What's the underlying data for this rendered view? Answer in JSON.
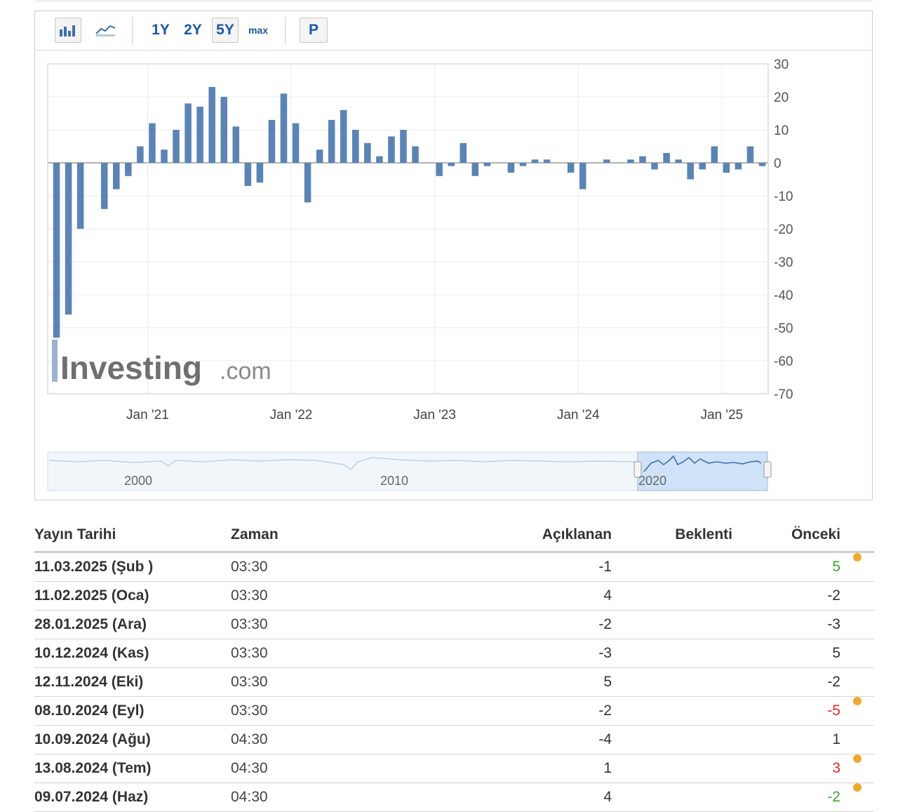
{
  "toolbar": {
    "bar_icon": "bar-chart-icon",
    "line_icon": "line-chart-icon",
    "ranges": [
      "1Y",
      "2Y",
      "5Y",
      "max"
    ],
    "selected_range": "5Y",
    "p_label": "P"
  },
  "watermark": {
    "bold": "Investing",
    "light": ".com"
  },
  "chart_data": {
    "type": "bar",
    "x_ticks": [
      "Jan '21",
      "Jan '22",
      "Jan '23",
      "Jan '24",
      "Jan '25"
    ],
    "y_ticks": [
      "30",
      "20",
      "10",
      "0",
      "-10",
      "-20",
      "-30",
      "-40",
      "-50",
      "-60",
      "-70"
    ],
    "ylim": [
      -70,
      30
    ],
    "values": [
      -53,
      -46,
      -20,
      0,
      -14,
      -8,
      -4,
      5,
      12,
      4,
      10,
      18,
      17,
      23,
      20,
      11,
      -7,
      -6,
      13,
      21,
      12,
      -12,
      4,
      13,
      16,
      10,
      6,
      2,
      8,
      10,
      5,
      0,
      -4,
      -1,
      6,
      -4,
      -1,
      0,
      -3,
      -1,
      1,
      1,
      0,
      -3,
      -8,
      0,
      1,
      0,
      1,
      2,
      -2,
      3,
      1,
      -5,
      -2,
      5,
      -3,
      -2,
      5,
      -1
    ],
    "navigator": {
      "labels": [
        "2000",
        "2010",
        "2020"
      ]
    },
    "series_color": "#5b84b5",
    "grid": true
  },
  "table": {
    "headers": [
      "Yayın Tarihi",
      "Zaman",
      "Açıklanan",
      "Beklenti",
      "Önceki"
    ],
    "rows": [
      {
        "date": "11.03.2025 (Şub )",
        "time": "03:30",
        "actual": "-1",
        "forecast": "",
        "previous": "5",
        "prev_color": "green",
        "revised": true
      },
      {
        "date": "11.02.2025 (Oca)",
        "time": "03:30",
        "actual": "4",
        "forecast": "",
        "previous": "-2",
        "prev_color": "",
        "revised": false
      },
      {
        "date": "28.01.2025 (Ara)",
        "time": "03:30",
        "actual": "-2",
        "forecast": "",
        "previous": "-3",
        "prev_color": "",
        "revised": false
      },
      {
        "date": "10.12.2024 (Kas)",
        "time": "03:30",
        "actual": "-3",
        "forecast": "",
        "previous": "5",
        "prev_color": "",
        "revised": false
      },
      {
        "date": "12.11.2024 (Eki)",
        "time": "03:30",
        "actual": "5",
        "forecast": "",
        "previous": "-2",
        "prev_color": "",
        "revised": false
      },
      {
        "date": "08.10.2024 (Eyl)",
        "time": "03:30",
        "actual": "-2",
        "forecast": "",
        "previous": "-5",
        "prev_color": "red",
        "revised": true
      },
      {
        "date": "10.09.2024 (Ağu)",
        "time": "04:30",
        "actual": "-4",
        "forecast": "",
        "previous": "1",
        "prev_color": "",
        "revised": false
      },
      {
        "date": "13.08.2024 (Tem)",
        "time": "04:30",
        "actual": "1",
        "forecast": "",
        "previous": "3",
        "prev_color": "red",
        "revised": true
      },
      {
        "date": "09.07.2024 (Haz)",
        "time": "04:30",
        "actual": "4",
        "forecast": "",
        "previous": "-2",
        "prev_color": "green",
        "revised": true
      }
    ]
  }
}
